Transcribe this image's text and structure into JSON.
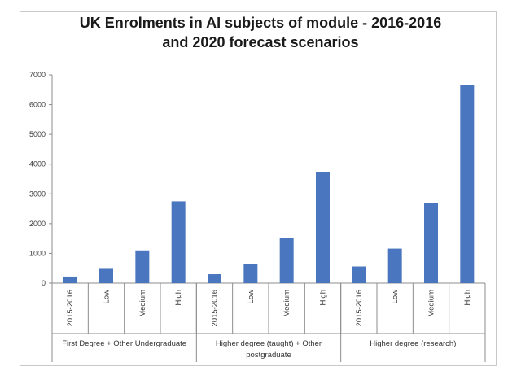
{
  "chart_data": {
    "type": "bar",
    "title_line1": "UK Enrolments in AI subjects of module - 2016-2016",
    "title_line2": "and 2020 forecast scenarios",
    "ylim": [
      0,
      7000
    ],
    "yticks": [
      "0",
      "1000",
      "2000",
      "3000",
      "4000",
      "5000",
      "6000",
      "7000"
    ],
    "groups": [
      {
        "name_lines": [
          "First Degree + Other Undergraduate"
        ],
        "categories": [
          "2015-2016",
          "Low",
          "Medium",
          "High"
        ],
        "values": [
          220,
          480,
          1100,
          2750
        ]
      },
      {
        "name_lines": [
          "Higher degree (taught) + Other",
          "postgraduate"
        ],
        "categories": [
          "2015-2016",
          "Low",
          "Medium",
          "High"
        ],
        "values": [
          300,
          640,
          1520,
          3720
        ]
      },
      {
        "name_lines": [
          "Higher degree (research)"
        ],
        "categories": [
          "2015-2016",
          "Low",
          "Medium",
          "High"
        ],
        "values": [
          560,
          1160,
          2700,
          6650
        ]
      }
    ],
    "bar_color": "#4a76c0",
    "legend": "none",
    "grid": false
  }
}
